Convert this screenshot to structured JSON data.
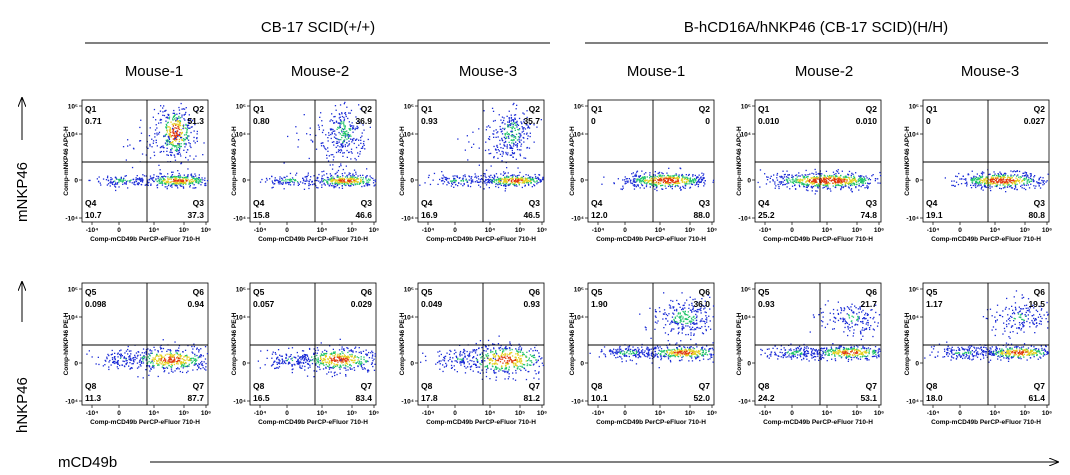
{
  "figure": {
    "groups": [
      {
        "title": "CB-17 SCID(+/+)"
      },
      {
        "title": "B-hCD16A/hNKP46 (CB-17 SCID)(H/H)"
      }
    ],
    "mouse_labels": [
      "Mouse-1",
      "Mouse-2",
      "Mouse-3",
      "Mouse-1",
      "Mouse-2",
      "Mouse-3"
    ],
    "row_labels": [
      "mNKP46",
      "hNKP46"
    ],
    "column_axis_label": "mCD49b",
    "colors": {
      "low": "#1a2bd6",
      "mid": "#22c46a",
      "high_mid": "#e6d020",
      "high": "#e03a10"
    }
  },
  "chart_data": [
    {
      "type": "scatter",
      "group": "CB-17 SCID(+/+)",
      "mouse": "Mouse-1",
      "row": "mNKP46",
      "xlabel": "Comp-mCD49b PerCP-eFluor 710-H",
      "ylabel": "Comp-mNKP46 APC-H",
      "x_ticks": [
        "-10⁴",
        "0",
        "10⁴",
        "10⁵",
        "10⁶"
      ],
      "y_ticks": [
        "-10⁴",
        "0",
        "10⁴",
        "10⁵"
      ],
      "quadrants": {
        "tl": {
          "name": "Q1",
          "value": "0.71"
        },
        "tr": {
          "name": "Q2",
          "value": "51.3"
        },
        "br": {
          "name": "Q3",
          "value": "37.3"
        },
        "bl": {
          "name": "Q4",
          "value": "10.7"
        }
      }
    },
    {
      "type": "scatter",
      "group": "CB-17 SCID(+/+)",
      "mouse": "Mouse-2",
      "row": "mNKP46",
      "xlabel": "Comp-mCD49b PerCP-eFluor 710-H",
      "ylabel": "Comp-mNKP46 APC-H",
      "x_ticks": [
        "-10⁴",
        "0",
        "10⁴",
        "10⁵",
        "10⁶"
      ],
      "y_ticks": [
        "-10⁴",
        "0",
        "10⁴",
        "10⁵"
      ],
      "quadrants": {
        "tl": {
          "name": "Q1",
          "value": "0.80"
        },
        "tr": {
          "name": "Q2",
          "value": "36.9"
        },
        "br": {
          "name": "Q3",
          "value": "46.6"
        },
        "bl": {
          "name": "Q4",
          "value": "15.8"
        }
      }
    },
    {
      "type": "scatter",
      "group": "CB-17 SCID(+/+)",
      "mouse": "Mouse-3",
      "row": "mNKP46",
      "xlabel": "Comp-mCD49b PerCP-eFluor 710-H",
      "ylabel": "Comp-mNKP46 APC-H",
      "x_ticks": [
        "-10⁴",
        "0",
        "10⁴",
        "10⁵",
        "10⁶"
      ],
      "y_ticks": [
        "-10⁴",
        "0",
        "10⁴",
        "10⁵"
      ],
      "quadrants": {
        "tl": {
          "name": "Q1",
          "value": "0.93"
        },
        "tr": {
          "name": "Q2",
          "value": "35.7"
        },
        "br": {
          "name": "Q3",
          "value": "46.5"
        },
        "bl": {
          "name": "Q4",
          "value": "16.9"
        }
      }
    },
    {
      "type": "scatter",
      "group": "B-hCD16A/hNKP46 (CB-17 SCID)(H/H)",
      "mouse": "Mouse-1",
      "row": "mNKP46",
      "xlabel": "Comp-mCD49b PerCP-eFluor 710-H",
      "ylabel": "Comp-mNKP46 APC-H",
      "x_ticks": [
        "-10⁴",
        "0",
        "10⁴",
        "10⁵",
        "10⁶"
      ],
      "y_ticks": [
        "-10⁴",
        "0",
        "10⁴",
        "10⁵"
      ],
      "quadrants": {
        "tl": {
          "name": "Q1",
          "value": "0"
        },
        "tr": {
          "name": "Q2",
          "value": "0"
        },
        "br": {
          "name": "Q3",
          "value": "88.0"
        },
        "bl": {
          "name": "Q4",
          "value": "12.0"
        }
      }
    },
    {
      "type": "scatter",
      "group": "B-hCD16A/hNKP46 (CB-17 SCID)(H/H)",
      "mouse": "Mouse-2",
      "row": "mNKP46",
      "xlabel": "Comp-mCD49b PerCP-eFluor 710-H",
      "ylabel": "Comp-mNKP46 APC-H",
      "x_ticks": [
        "-10⁴",
        "0",
        "10⁴",
        "10⁵",
        "10⁶"
      ],
      "y_ticks": [
        "-10⁴",
        "0",
        "10⁴",
        "10⁵"
      ],
      "quadrants": {
        "tl": {
          "name": "Q1",
          "value": "0.010"
        },
        "tr": {
          "name": "Q2",
          "value": "0.010"
        },
        "br": {
          "name": "Q3",
          "value": "74.8"
        },
        "bl": {
          "name": "Q4",
          "value": "25.2"
        }
      }
    },
    {
      "type": "scatter",
      "group": "B-hCD16A/hNKP46 (CB-17 SCID)(H/H)",
      "mouse": "Mouse-3",
      "row": "mNKP46",
      "xlabel": "Comp-mCD49b PerCP-eFluor 710-H",
      "ylabel": "Comp-mNKP46 APC-H",
      "x_ticks": [
        "-10⁴",
        "0",
        "10⁴",
        "10⁵",
        "10⁶"
      ],
      "y_ticks": [
        "-10⁴",
        "0",
        "10⁴",
        "10⁵"
      ],
      "quadrants": {
        "tl": {
          "name": "Q1",
          "value": "0"
        },
        "tr": {
          "name": "Q2",
          "value": "0.027"
        },
        "br": {
          "name": "Q3",
          "value": "80.8"
        },
        "bl": {
          "name": "Q4",
          "value": "19.1"
        }
      }
    },
    {
      "type": "scatter",
      "group": "CB-17 SCID(+/+)",
      "mouse": "Mouse-1",
      "row": "hNKP46",
      "xlabel": "Comp-mCD49b PerCP-eFluor 710-H",
      "ylabel": "Comp-hNKP46 PE-H",
      "x_ticks": [
        "-10⁴",
        "0",
        "10⁴",
        "10⁵",
        "10⁶"
      ],
      "y_ticks": [
        "-10⁴",
        "0",
        "10⁴",
        "10⁵"
      ],
      "quadrants": {
        "tl": {
          "name": "Q5",
          "value": "0.098"
        },
        "tr": {
          "name": "Q6",
          "value": "0.94"
        },
        "br": {
          "name": "Q7",
          "value": "87.7"
        },
        "bl": {
          "name": "Q8",
          "value": "11.3"
        }
      }
    },
    {
      "type": "scatter",
      "group": "CB-17 SCID(+/+)",
      "mouse": "Mouse-2",
      "row": "hNKP46",
      "xlabel": "Comp-mCD49b PerCP-eFluor 710-H",
      "ylabel": "Comp-hNKP46 PE-H",
      "x_ticks": [
        "-10⁴",
        "0",
        "10⁴",
        "10⁵",
        "10⁶"
      ],
      "y_ticks": [
        "-10⁴",
        "0",
        "10⁴",
        "10⁵"
      ],
      "quadrants": {
        "tl": {
          "name": "Q5",
          "value": "0.057"
        },
        "tr": {
          "name": "Q6",
          "value": "0.029"
        },
        "br": {
          "name": "Q7",
          "value": "83.4"
        },
        "bl": {
          "name": "Q8",
          "value": "16.5"
        }
      }
    },
    {
      "type": "scatter",
      "group": "CB-17 SCID(+/+)",
      "mouse": "Mouse-3",
      "row": "hNKP46",
      "xlabel": "Comp-mCD49b PerCP-eFluor 710-H",
      "ylabel": "Comp-hNKP46 PE-H",
      "x_ticks": [
        "-10⁴",
        "0",
        "10⁴",
        "10⁵",
        "10⁶"
      ],
      "y_ticks": [
        "-10⁴",
        "0",
        "10⁴",
        "10⁵"
      ],
      "quadrants": {
        "tl": {
          "name": "Q5",
          "value": "0.049"
        },
        "tr": {
          "name": "Q6",
          "value": "0.93"
        },
        "br": {
          "name": "Q7",
          "value": "81.2"
        },
        "bl": {
          "name": "Q8",
          "value": "17.8"
        }
      }
    },
    {
      "type": "scatter",
      "group": "B-hCD16A/hNKP46 (CB-17 SCID)(H/H)",
      "mouse": "Mouse-1",
      "row": "hNKP46",
      "xlabel": "Comp-mCD49b PerCP-eFluor 710-H",
      "ylabel": "Comp-hNKP46 PE-H",
      "x_ticks": [
        "-10⁴",
        "0",
        "10⁴",
        "10⁵",
        "10⁶"
      ],
      "y_ticks": [
        "-10⁴",
        "0",
        "10⁴",
        "10⁵"
      ],
      "quadrants": {
        "tl": {
          "name": "Q5",
          "value": "1.90"
        },
        "tr": {
          "name": "Q6",
          "value": "36.0"
        },
        "br": {
          "name": "Q7",
          "value": "52.0"
        },
        "bl": {
          "name": "Q8",
          "value": "10.1"
        }
      }
    },
    {
      "type": "scatter",
      "group": "B-hCD16A/hNKP46 (CB-17 SCID)(H/H)",
      "mouse": "Mouse-2",
      "row": "hNKP46",
      "xlabel": "Comp-mCD49b PerCP-eFluor 710-H",
      "ylabel": "Comp-hNKP46 PE-H",
      "x_ticks": [
        "-10⁴",
        "0",
        "10⁴",
        "10⁵",
        "10⁶"
      ],
      "y_ticks": [
        "-10⁴",
        "0",
        "10⁴",
        "10⁵"
      ],
      "quadrants": {
        "tl": {
          "name": "Q5",
          "value": "0.93"
        },
        "tr": {
          "name": "Q6",
          "value": "21.7"
        },
        "br": {
          "name": "Q7",
          "value": "53.1"
        },
        "bl": {
          "name": "Q8",
          "value": "24.2"
        }
      }
    },
    {
      "type": "scatter",
      "group": "B-hCD16A/hNKP46 (CB-17 SCID)(H/H)",
      "mouse": "Mouse-3",
      "row": "hNKP46",
      "xlabel": "Comp-mCD49b PerCP-eFluor 710-H",
      "ylabel": "Comp-hNKP46 PE-H",
      "x_ticks": [
        "-10⁴",
        "0",
        "10⁴",
        "10⁵",
        "10⁶"
      ],
      "y_ticks": [
        "-10⁴",
        "0",
        "10⁴",
        "10⁵"
      ],
      "quadrants": {
        "tl": {
          "name": "Q5",
          "value": "1.17"
        },
        "tr": {
          "name": "Q6",
          "value": "19.5"
        },
        "br": {
          "name": "Q7",
          "value": "61.4"
        },
        "bl": {
          "name": "Q8",
          "value": "18.0"
        }
      }
    }
  ]
}
